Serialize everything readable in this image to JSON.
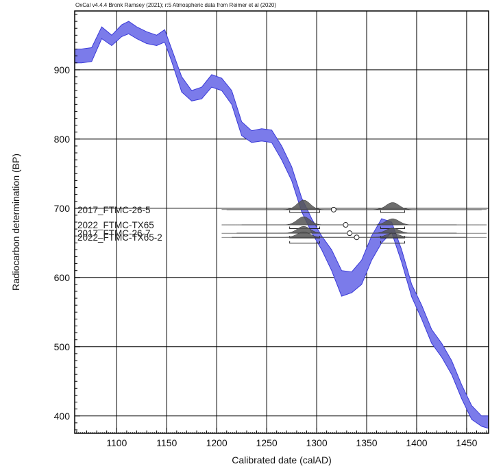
{
  "chart_data": {
    "type": "line",
    "credit": "OxCal v4.4.4 Bronk Ramsey (2021); r:5 Atmospheric data from Reimer et al (2020)",
    "xlabel": "Calibrated date (calAD)",
    "ylabel": "Radiocarbon determination (BP)",
    "xlim": [
      1058,
      1472
    ],
    "ylim": [
      375,
      985
    ],
    "xticks": [
      1100,
      1150,
      1200,
      1250,
      1300,
      1350,
      1400,
      1450
    ],
    "yticks": [
      400,
      500,
      600,
      700,
      800,
      900
    ],
    "grid": true,
    "colors": {
      "curve_fill": "#7b7bea",
      "curve_edge": "#3a3ad8",
      "distribution": "#555555",
      "axis": "#000000"
    },
    "calibration_curve": {
      "x": [
        1058,
        1065,
        1075,
        1085,
        1095,
        1105,
        1112,
        1120,
        1130,
        1140,
        1148,
        1155,
        1165,
        1175,
        1185,
        1195,
        1205,
        1215,
        1225,
        1235,
        1245,
        1255,
        1265,
        1275,
        1285,
        1295,
        1305,
        1315,
        1325,
        1335,
        1345,
        1355,
        1365,
        1375,
        1385,
        1395,
        1405,
        1415,
        1425,
        1435,
        1445,
        1455,
        1465,
        1472
      ],
      "upper": [
        930,
        930,
        932,
        962,
        950,
        965,
        970,
        962,
        955,
        950,
        958,
        930,
        890,
        870,
        875,
        893,
        888,
        870,
        825,
        812,
        815,
        813,
        790,
        760,
        715,
        685,
        660,
        640,
        610,
        608,
        625,
        660,
        685,
        680,
        640,
        590,
        560,
        525,
        505,
        480,
        445,
        415,
        400,
        400
      ],
      "lower": [
        910,
        910,
        912,
        945,
        935,
        948,
        952,
        945,
        938,
        935,
        940,
        912,
        868,
        855,
        858,
        875,
        870,
        850,
        805,
        795,
        797,
        795,
        770,
        740,
        695,
        665,
        640,
        610,
        573,
        578,
        590,
        625,
        650,
        665,
        622,
        572,
        540,
        505,
        485,
        460,
        425,
        395,
        385,
        382
      ]
    },
    "samples": [
      {
        "name": "2017_FTMC-26-5",
        "bp": 698,
        "range": [
          1210,
          1465
        ],
        "mean": 1317
      },
      {
        "name": "2022_FTMC-TX65",
        "bp": 676,
        "range": [
          1225,
          1440
        ],
        "mean": 1329
      },
      {
        "name": "2017_FTMC-26-7",
        "bp": 664,
        "range": [
          1220,
          1440
        ],
        "mean": 1333
      },
      {
        "name": "2022_FTMC-TX65-2",
        "bp": 658,
        "range": [
          1215,
          1450
        ],
        "mean": 1340
      }
    ],
    "distribution_peaks": [
      1287,
      1376
    ]
  }
}
